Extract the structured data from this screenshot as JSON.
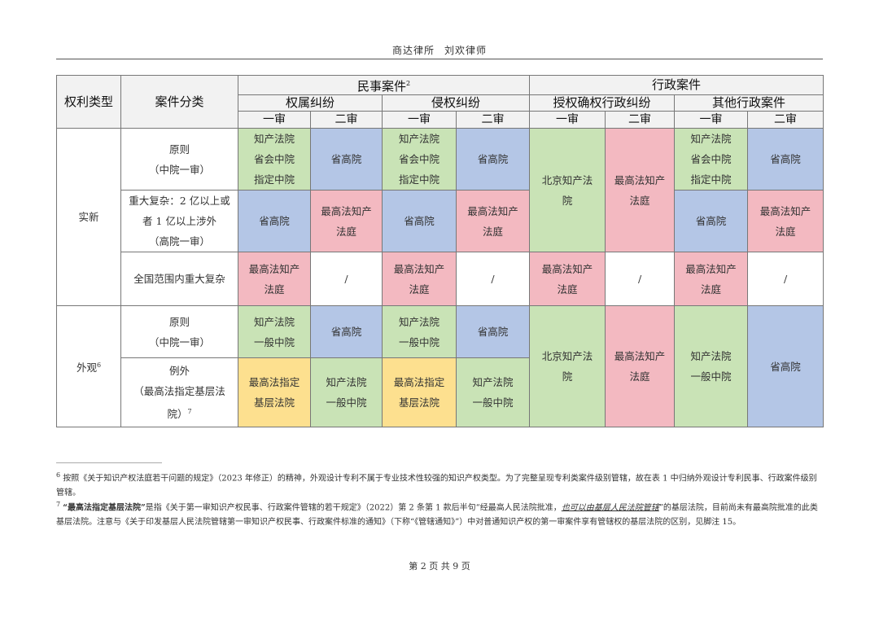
{
  "header": {
    "firm": "商达律所",
    "author": "刘欢律师"
  },
  "colors": {
    "green": "#c9e3b6",
    "blue": "#b4c6e6",
    "pink": "#f3b9c1",
    "yellow": "#fde08f",
    "header": "#f2f2f2",
    "white": "#ffffff"
  },
  "table": {
    "rows": [
      [
        {
          "text": "权利类型",
          "bg": "header",
          "rowspan": 3,
          "big": true
        },
        {
          "text": "案件分类",
          "bg": "header",
          "rowspan": 3,
          "big": true
        },
        {
          "text": "民事案件",
          "sup": "2",
          "bg": "header",
          "colspan": 4,
          "big": true
        },
        {
          "text": "行政案件",
          "bg": "header",
          "colspan": 4,
          "big": true
        }
      ],
      [
        {
          "text": "权属纠纷",
          "bg": "header",
          "colspan": 2,
          "big": true
        },
        {
          "text": "侵权纠纷",
          "bg": "header",
          "colspan": 2,
          "big": true
        },
        {
          "text": "授权确权行政纠纷",
          "bg": "header",
          "colspan": 2,
          "big": true
        },
        {
          "text": "其他行政案件",
          "bg": "header",
          "colspan": 2,
          "big": true
        }
      ],
      [
        {
          "text": "一审",
          "bg": "header"
        },
        {
          "text": "二审",
          "bg": "header"
        },
        {
          "text": "一审",
          "bg": "header"
        },
        {
          "text": "二审",
          "bg": "header"
        },
        {
          "text": "一审",
          "bg": "header"
        },
        {
          "text": "二审",
          "bg": "header"
        },
        {
          "text": "一审",
          "bg": "header"
        },
        {
          "text": "二审",
          "bg": "header"
        }
      ],
      [
        {
          "text": "实新",
          "bg": "white",
          "rowspan": 3
        },
        {
          "text": "原则\n（中院一审）",
          "bg": "white"
        },
        {
          "text": "知产法院\n省会中院\n指定中院",
          "bg": "green"
        },
        {
          "text": "省高院",
          "bg": "blue"
        },
        {
          "text": "知产法院\n省会中院\n指定中院",
          "bg": "green"
        },
        {
          "text": "省高院",
          "bg": "blue"
        },
        {
          "text": "北京知产法\n院",
          "bg": "green",
          "rowspan": 2
        },
        {
          "text": "最高法知产\n法庭",
          "bg": "pink",
          "rowspan": 2
        },
        {
          "text": "知产法院\n省会中院\n指定中院",
          "bg": "green"
        },
        {
          "text": "省高院",
          "bg": "blue"
        }
      ],
      [
        {
          "text": "重大复杂：2 亿以上或\n者 1 亿以上涉外\n（高院一审）",
          "bg": "white"
        },
        {
          "text": "省高院",
          "bg": "blue"
        },
        {
          "text": "最高法知产\n法庭",
          "bg": "pink"
        },
        {
          "text": "省高院",
          "bg": "blue"
        },
        {
          "text": "最高法知产\n法庭",
          "bg": "pink"
        },
        {
          "text": "省高院",
          "bg": "blue"
        },
        {
          "text": "最高法知产\n法庭",
          "bg": "pink"
        }
      ],
      [
        {
          "text": "全国范围内重大复杂",
          "bg": "white"
        },
        {
          "text": "最高法知产\n法庭",
          "bg": "pink"
        },
        {
          "text": "/",
          "bg": "white"
        },
        {
          "text": "最高法知产\n法庭",
          "bg": "pink"
        },
        {
          "text": "/",
          "bg": "white"
        },
        {
          "text": "最高法知产\n法庭",
          "bg": "pink"
        },
        {
          "text": "/",
          "bg": "white"
        },
        {
          "text": "最高法知产\n法庭",
          "bg": "pink"
        },
        {
          "text": "/",
          "bg": "white"
        }
      ],
      [
        {
          "text": "外观",
          "sup": "6",
          "bg": "white",
          "rowspan": 2
        },
        {
          "text": "原则\n（中院一审）",
          "bg": "white"
        },
        {
          "text": "知产法院\n一般中院",
          "bg": "green"
        },
        {
          "text": "省高院",
          "bg": "blue"
        },
        {
          "text": "知产法院\n一般中院",
          "bg": "green"
        },
        {
          "text": "省高院",
          "bg": "blue"
        },
        {
          "text": "北京知产法\n院",
          "bg": "green",
          "rowspan": 2
        },
        {
          "text": "最高法知产\n法庭",
          "bg": "pink",
          "rowspan": 2
        },
        {
          "text": "知产法院\n一般中院",
          "bg": "green",
          "rowspan": 2
        },
        {
          "text": "省高院",
          "bg": "blue",
          "rowspan": 2
        }
      ],
      [
        {
          "text": "例外\n（最高法指定基层法\n院）",
          "sup": "7",
          "bg": "white"
        },
        {
          "text": "最高法指定\n基层法院",
          "bg": "yellow"
        },
        {
          "text": "知产法院\n一般中院",
          "bg": "green"
        },
        {
          "text": "最高法指定\n基层法院",
          "bg": "yellow"
        },
        {
          "text": "知产法院\n一般中院",
          "bg": "green"
        }
      ]
    ]
  },
  "footnotes": [
    {
      "num": "6",
      "segments": [
        {
          "t": "按照《关于知识产权法庭若干问题的规定》（2023 年修正）的精神，外观设计专利不属于专业技术性较强的知识产权类型。为了完整呈现专利类案件级别管辖，故在表 1 中归纳外观设计专利民事、行政案件级别管辖。"
        }
      ]
    },
    {
      "num": "7",
      "segments": [
        {
          "t": "“最高法指定基层法院”",
          "style": "b"
        },
        {
          "t": "是指《关于第一审知识产权民事、行政案件管辖的若干规定》（2022）第 2 条第 1 款后半句“经最高人民法院批准，"
        },
        {
          "t": "也可以由基层人民法院管辖",
          "style": "u"
        },
        {
          "t": "”的基层法院，目前尚未有最高院批准的此类基层法院。注意与《关于印发基层人民法院管辖第一审知识产权民事、行政案件标准的通知》（下称“《管辖通知》”）中对普通知识产权的第一审案件享有管辖权的基层法院的区别，见脚注 15。"
        }
      ]
    }
  ],
  "footer": {
    "page_text": "第 2 页 共 9 页"
  }
}
